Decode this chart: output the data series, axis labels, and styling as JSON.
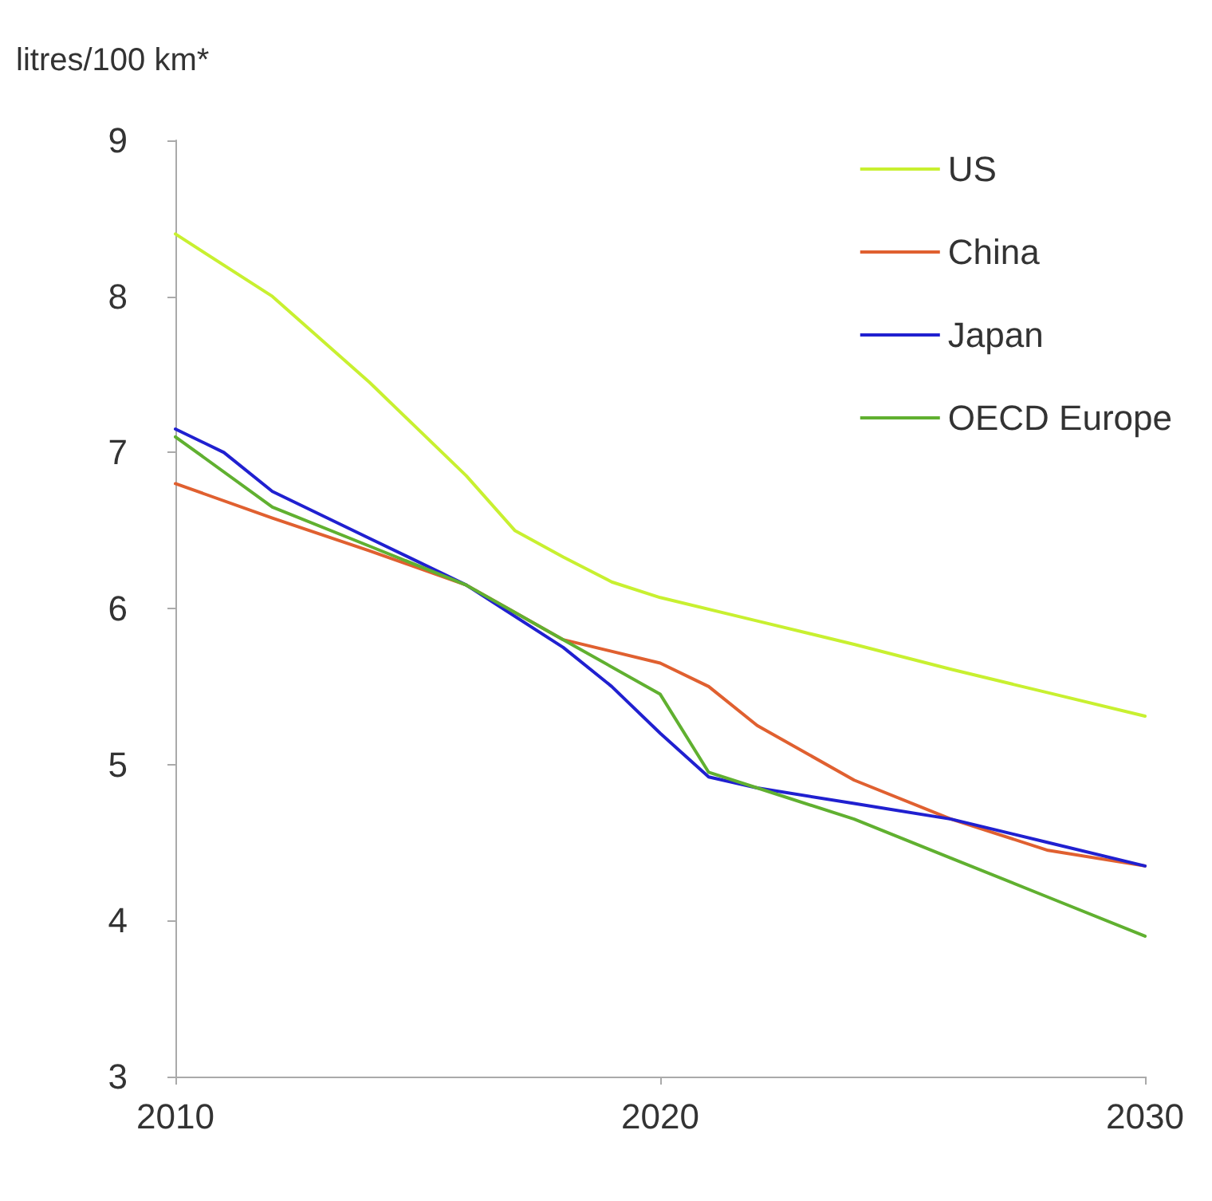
{
  "chart_data": {
    "type": "line",
    "ylabel": "litres/100 km*",
    "xlim": [
      2010,
      2030
    ],
    "xticks": [
      2010,
      2020,
      2030
    ],
    "ylim": [
      3,
      9
    ],
    "yticks": [
      3,
      4,
      5,
      6,
      7,
      8,
      9
    ],
    "grid": false,
    "legend": "top right",
    "marker": "none",
    "line_style": "solid",
    "series": [
      {
        "name": "US",
        "color": "#c8f030",
        "x": [
          2010,
          2012,
          2014,
          2016,
          2017,
          2018,
          2019,
          2020,
          2022,
          2024,
          2026,
          2028,
          2030
        ],
        "values": [
          8.4,
          8.0,
          7.45,
          6.85,
          6.5,
          6.33,
          6.17,
          6.07,
          5.92,
          5.77,
          5.61,
          5.46,
          5.31
        ]
      },
      {
        "name": "China",
        "color": "#e06030",
        "x": [
          2010,
          2012,
          2014,
          2016,
          2018,
          2020,
          2021,
          2022,
          2024,
          2026,
          2028,
          2030
        ],
        "values": [
          6.8,
          6.58,
          6.37,
          6.15,
          5.8,
          5.65,
          5.5,
          5.25,
          4.9,
          4.65,
          4.45,
          4.35
        ]
      },
      {
        "name": "Japan",
        "color": "#2020d0",
        "x": [
          2010,
          2011,
          2012,
          2014,
          2016,
          2018,
          2019,
          2020,
          2021,
          2022,
          2024,
          2026,
          2028,
          2030
        ],
        "values": [
          7.15,
          7.0,
          6.75,
          6.45,
          6.15,
          5.75,
          5.5,
          5.2,
          4.92,
          4.85,
          4.75,
          4.65,
          4.5,
          4.35
        ]
      },
      {
        "name": "OECD Europe",
        "color": "#60b030",
        "x": [
          2010,
          2012,
          2014,
          2016,
          2018,
          2020,
          2021,
          2022,
          2024,
          2026,
          2028,
          2030
        ],
        "values": [
          7.1,
          6.65,
          6.4,
          6.15,
          5.8,
          5.45,
          4.95,
          4.85,
          4.65,
          4.4,
          4.15,
          3.9
        ]
      }
    ]
  }
}
